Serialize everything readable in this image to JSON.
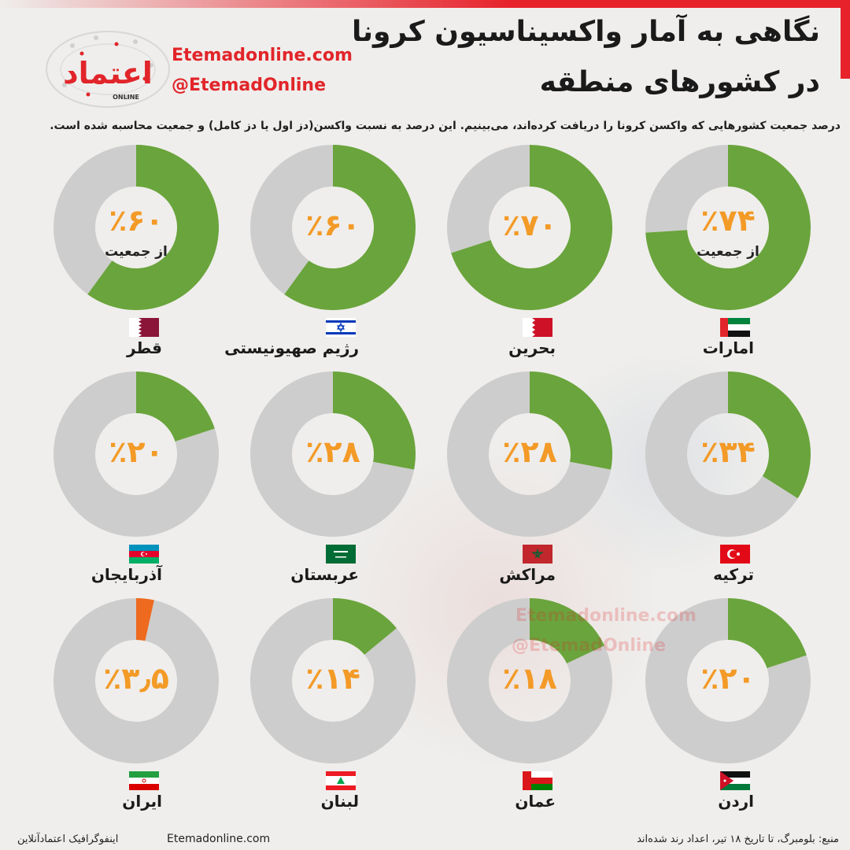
{
  "header": {
    "title_line1": "نگاهی به آمار واکسیناسیون کرونا",
    "title_line2": "در کشورهای منطقه",
    "site": "Etemadonline.com",
    "handle": "@EtemadOnline",
    "logo_text": "اعتماد",
    "logo_subtext": "ONLINE"
  },
  "subtitle": "درصد جمعیت کشورهایی که واکسن کرونا را دریافت کرده‌اند، می‌بینیم. این درصد به نسبت واکسن(دز اول یا دز کامل) و جمعیت محاسبه شده است.",
  "watermark": {
    "site": "Etemadonline.com",
    "handle": "@EtemadOnline"
  },
  "colors": {
    "filled": "#6aa43c",
    "filled_iran": "#ed6a1f",
    "empty": "#cdcdcd",
    "percent_text": "#f39a27",
    "brand_red": "#e1252a"
  },
  "chart_data": {
    "type": "pie",
    "subtype": "donut",
    "unit": "%",
    "items": [
      {
        "country": "امارات",
        "flag": "uae-flag",
        "value": 74,
        "label": "٪۷۴",
        "note": "از جمعیت"
      },
      {
        "country": "بحرین",
        "flag": "bahrain-flag",
        "value": 70,
        "label": "٪۷۰",
        "note": ""
      },
      {
        "country": "رژیم صهیونیستی",
        "flag": "israel-flag",
        "value": 60,
        "label": "٪۶۰",
        "note": ""
      },
      {
        "country": "قطر",
        "flag": "qatar-flag",
        "value": 60,
        "label": "٪۶۰",
        "note": "از جمعیت"
      },
      {
        "country": "ترکیه",
        "flag": "turkey-flag",
        "value": 34,
        "label": "٪۳۴",
        "note": ""
      },
      {
        "country": "مراکش",
        "flag": "morocco-flag",
        "value": 28,
        "label": "٪۲۸",
        "note": ""
      },
      {
        "country": "عربستان",
        "flag": "saudi-flag",
        "value": 28,
        "label": "٪۲۸",
        "note": ""
      },
      {
        "country": "آذربایجان",
        "flag": "azerbaijan-flag",
        "value": 20,
        "label": "٪۲۰",
        "note": ""
      },
      {
        "country": "اردن",
        "flag": "jordan-flag",
        "value": 20,
        "label": "٪۲۰",
        "note": ""
      },
      {
        "country": "عمان",
        "flag": "oman-flag",
        "value": 18,
        "label": "٪۱۸",
        "note": ""
      },
      {
        "country": "لبنان",
        "flag": "lebanon-flag",
        "value": 14,
        "label": "٪۱۴",
        "note": ""
      },
      {
        "country": "ایران",
        "flag": "iran-flag",
        "value": 3.5,
        "label": "٪۳٫۵",
        "note": ""
      }
    ]
  },
  "footer": {
    "left": "اینفوگرافیک اعتمادآنلاین",
    "middle": "Etemadonline.com",
    "right": "منبع: بلومبرگ، تا تاریخ ۱۸ تیر،   اعداد رند شده‌اند"
  }
}
